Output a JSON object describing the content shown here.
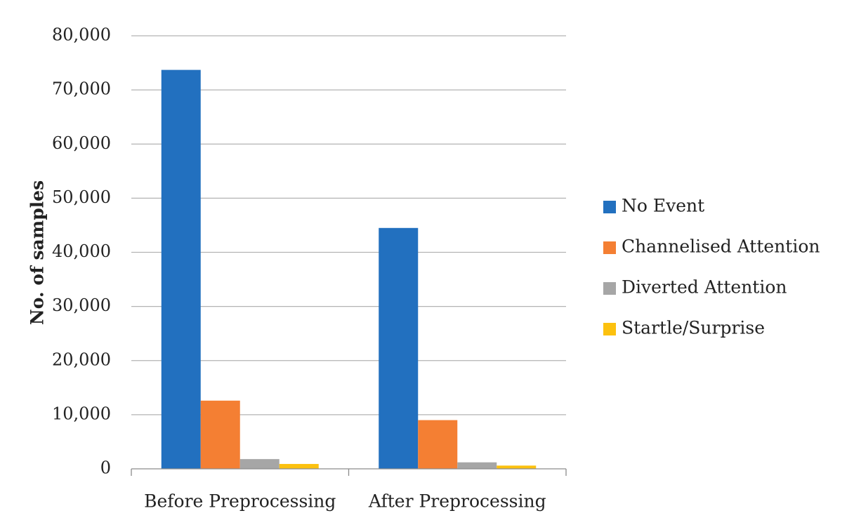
{
  "chart_data": {
    "type": "bar",
    "title": "",
    "xlabel": "",
    "ylabel": "No. of samples",
    "ylim": [
      0,
      80000
    ],
    "yticks": [
      0,
      10000,
      20000,
      30000,
      40000,
      50000,
      60000,
      70000,
      80000
    ],
    "ytick_labels": [
      "0",
      "10,000",
      "20,000",
      "30,000",
      "40,000",
      "50,000",
      "60,000",
      "70,000",
      "80,000"
    ],
    "grid": true,
    "legend_position": "right",
    "categories": [
      "Before Preprocessing",
      "After Preprocessing"
    ],
    "series": [
      {
        "name": "No Event",
        "color": "#2270bf",
        "values": [
          73700,
          44500
        ]
      },
      {
        "name": "Channelised Attention",
        "color": "#f47f33",
        "values": [
          12600,
          9000
        ]
      },
      {
        "name": "Diverted Attention",
        "color": "#a6a6a6",
        "values": [
          1800,
          1200
        ]
      },
      {
        "name": "Startle/Surprise",
        "color": "#fcc10f",
        "values": [
          900,
          600
        ]
      }
    ]
  }
}
